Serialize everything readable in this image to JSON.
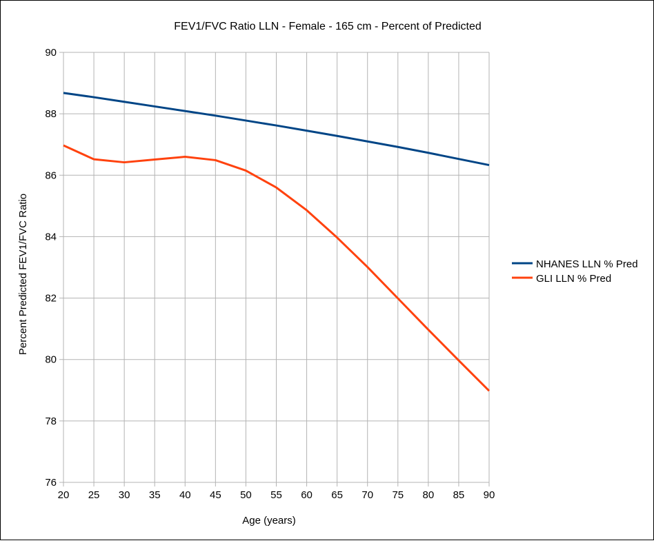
{
  "chart_data": {
    "type": "line",
    "title": "FEV1/FVC Ratio LLN - Female - 165 cm - Percent of Predicted",
    "xlabel": "Age (years)",
    "ylabel": "Percent Predicted FEV1/FVC Ratio",
    "x": [
      20,
      25,
      30,
      35,
      40,
      45,
      50,
      55,
      60,
      65,
      70,
      75,
      80,
      85,
      90
    ],
    "xlim": [
      20,
      90
    ],
    "ylim": [
      76,
      90
    ],
    "yticks": [
      76,
      78,
      80,
      82,
      84,
      86,
      88,
      90
    ],
    "grid": true,
    "legend_position": "right",
    "series": [
      {
        "name": "NHANES LLN % Pred",
        "color": "#004586",
        "values": [
          88.68,
          88.54,
          88.39,
          88.24,
          88.09,
          87.94,
          87.78,
          87.62,
          87.45,
          87.28,
          87.1,
          86.92,
          86.73,
          86.53,
          86.33
        ]
      },
      {
        "name": "GLI LLN % Pred",
        "color": "#ff420e",
        "values": [
          86.97,
          86.52,
          86.42,
          86.51,
          86.6,
          86.49,
          86.15,
          85.6,
          84.86,
          83.97,
          83.01,
          81.99,
          80.97,
          79.97,
          78.98
        ]
      }
    ]
  }
}
